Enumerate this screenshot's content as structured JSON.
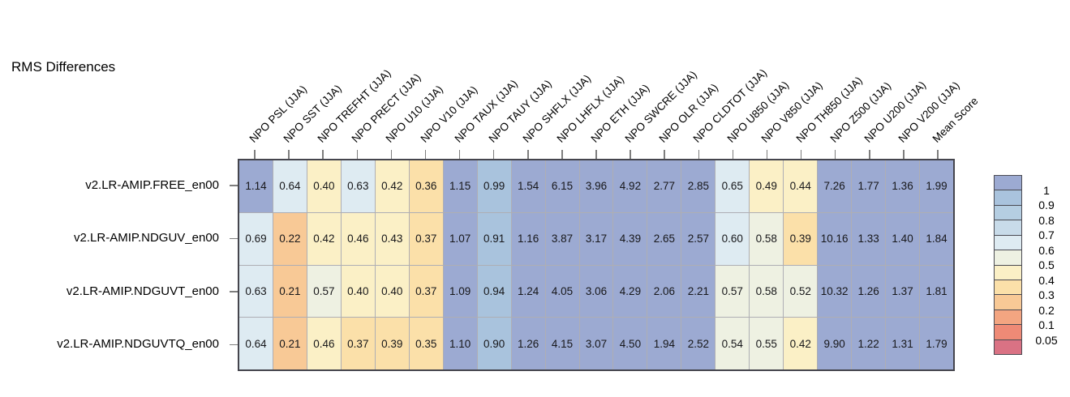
{
  "title": "RMS Differences",
  "chart_data": {
    "type": "heatmap",
    "title": "RMS Differences",
    "value_format": "two_decimals",
    "legend_position": "right",
    "columns": [
      "NPO PSL (JJA)",
      "NPO SST (JJA)",
      "NPO TREFHT (JJA)",
      "NPO PRECT (JJA)",
      "NPO U10 (JJA)",
      "NPO V10 (JJA)",
      "NPO TAUX (JJA)",
      "NPO TAUY (JJA)",
      "NPO SHFLX (JJA)",
      "NPO LHFLX (JJA)",
      "NPO ETH (JJA)",
      "NPO SWCRE (JJA)",
      "NPO OLR (JJA)",
      "NPO CLDTOT (JJA)",
      "NPO U850 (JJA)",
      "NPO V850 (JJA)",
      "NPO TH850 (JJA)",
      "NPO Z500 (JJA)",
      "NPO U200 (JJA)",
      "NPO V200 (JJA)",
      "Mean Score"
    ],
    "rows": [
      {
        "label": "v2.LR-AMIP.FREE_en00",
        "values": [
          "1.14",
          "0.64",
          "0.40",
          "0.63",
          "0.42",
          "0.36",
          "1.15",
          "0.99",
          "1.54",
          "6.15",
          "3.96",
          "4.92",
          "2.77",
          "2.85",
          "0.65",
          "0.49",
          "0.44",
          "7.26",
          "1.77",
          "1.36",
          "1.99"
        ]
      },
      {
        "label": "v2.LR-AMIP.NDGUV_en00",
        "values": [
          "0.69",
          "0.22",
          "0.42",
          "0.46",
          "0.43",
          "0.37",
          "1.07",
          "0.91",
          "1.16",
          "3.87",
          "3.17",
          "4.39",
          "2.65",
          "2.57",
          "0.60",
          "0.58",
          "0.39",
          "10.16",
          "1.33",
          "1.40",
          "1.84"
        ]
      },
      {
        "label": "v2.LR-AMIP.NDGUVT_en00",
        "values": [
          "0.63",
          "0.21",
          "0.57",
          "0.40",
          "0.40",
          "0.37",
          "1.09",
          "0.94",
          "1.24",
          "4.05",
          "3.06",
          "4.29",
          "2.06",
          "2.21",
          "0.57",
          "0.58",
          "0.52",
          "10.32",
          "1.26",
          "1.37",
          "1.81"
        ]
      },
      {
        "label": "v2.LR-AMIP.NDGUVTQ_en00",
        "values": [
          "0.64",
          "0.21",
          "0.46",
          "0.37",
          "0.39",
          "0.35",
          "1.10",
          "0.90",
          "1.26",
          "4.15",
          "3.07",
          "4.50",
          "1.94",
          "2.52",
          "0.54",
          "0.55",
          "0.42",
          "9.90",
          "1.22",
          "1.31",
          "1.79"
        ]
      }
    ],
    "colorbar": {
      "labels": [
        "1",
        "0.9",
        "0.8",
        "0.7",
        "0.6",
        "0.5",
        "0.4",
        "0.3",
        "0.2",
        "0.1",
        "0.05"
      ],
      "colors": [
        "#9caad2",
        "#a9c3dd",
        "#b5cee2",
        "#c8dbe9",
        "#deebf2",
        "#eef1e2",
        "#fbf0c6",
        "#fbe0a9",
        "#f8c996",
        "#f3a581",
        "#ee8a76",
        "#da7284"
      ]
    }
  }
}
